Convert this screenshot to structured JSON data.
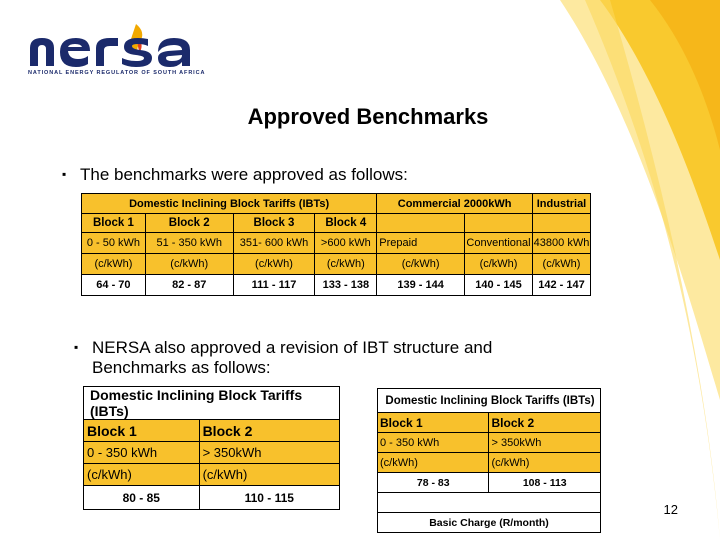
{
  "logo": {
    "wordmark": "nersa",
    "tagline": "NATIONAL ENERGY REGULATOR OF SOUTH AFRICA"
  },
  "title": "Approved Benchmarks",
  "bullet1": "The benchmarks were approved as follows:",
  "table1": {
    "header": [
      "Domestic Inclining Block Tariffs (IBTs)",
      "Commercial  2000kWh",
      "Industrial"
    ],
    "blocks": [
      "Block 1",
      "Block 2",
      "Block 3",
      "Block 4"
    ],
    "ranges": [
      "0 - 50 kWh",
      "51 - 350 kWh",
      "351- 600 kWh",
      ">600 kWh",
      "Prepaid",
      "Conventional",
      "43800 kWh"
    ],
    "units": [
      "(c/kWh)",
      "(c/kWh)",
      "(c/kWh)",
      "(c/kWh)",
      "(c/kWh)",
      "(c/kWh)",
      "(c/kWh)"
    ],
    "values": [
      "64 - 70",
      "82 - 87",
      "111 - 117",
      "133 - 138",
      "139 - 144",
      "140 - 145",
      "142 - 147"
    ]
  },
  "bullet2": {
    "line1": "NERSA also approved a revision of IBT structure and",
    "line2": "Benchmarks as follows:"
  },
  "table2": {
    "header": "Domestic Inclining Block Tariffs (IBTs)",
    "blocks": [
      "Block 1",
      "Block 2"
    ],
    "ranges": [
      "0 - 350 kWh",
      "> 350kWh"
    ],
    "units": [
      "(c/kWh)",
      "(c/kWh)"
    ],
    "values": [
      "80 - 85",
      "110 - 115"
    ]
  },
  "table3": {
    "header": "Domestic Inclining Block Tariffs (IBTs)",
    "blocks": [
      "Block 1",
      "Block 2"
    ],
    "ranges": [
      "0 - 350 kWh",
      "> 350kWh"
    ],
    "units": [
      "(c/kWh)",
      "(c/kWh)"
    ],
    "values": [
      "78 - 83",
      "108 - 113"
    ],
    "footer": "Basic Charge (R/month)"
  },
  "page_number": "12",
  "colors": {
    "accent_yellow": "#f8c12c",
    "logo_blue": "#1b2a6b"
  }
}
